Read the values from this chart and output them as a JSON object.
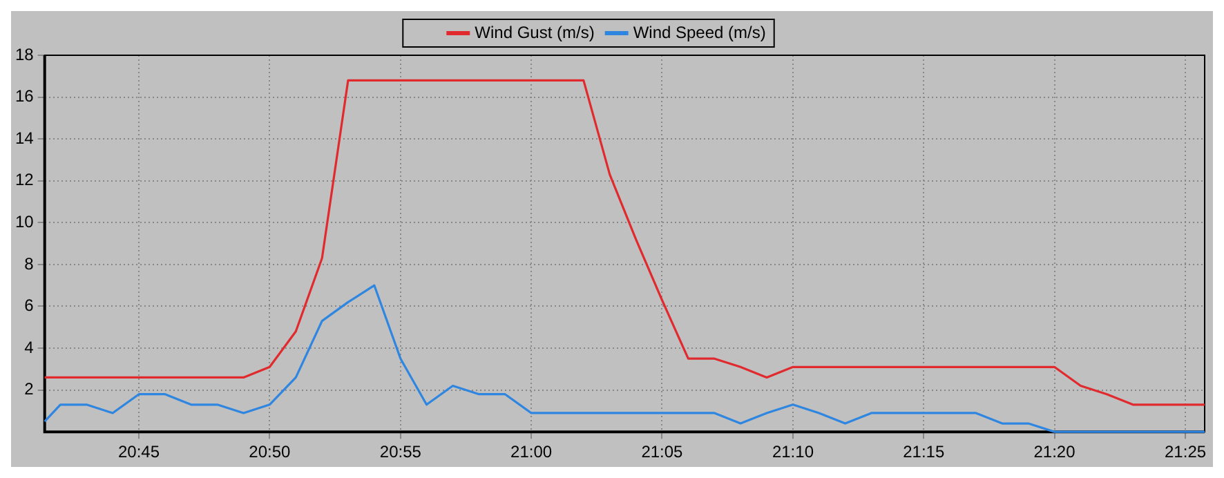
{
  "chart_data": {
    "type": "line",
    "legend": "top",
    "grid": true,
    "marker": "none",
    "line_style": "solid",
    "xlim": [
      20.69,
      21.429
    ],
    "ylim": [
      0,
      18
    ],
    "xticks": [
      {
        "value": 20.75,
        "label": "20:45"
      },
      {
        "value": 20.8333,
        "label": "20:50"
      },
      {
        "value": 20.9167,
        "label": "20:55"
      },
      {
        "value": 21,
        "label": "21:00"
      },
      {
        "value": 21.0833,
        "label": "21:05"
      },
      {
        "value": 21.1667,
        "label": "21:10"
      },
      {
        "value": 21.25,
        "label": "21:15"
      },
      {
        "value": 21.3333,
        "label": "21:20"
      },
      {
        "value": 21.4167,
        "label": "21:25"
      }
    ],
    "yticks": [
      2,
      4,
      6,
      8,
      10,
      12,
      14,
      16,
      18
    ],
    "x": [
      20.69,
      20.7,
      20.7167,
      20.7333,
      20.75,
      20.7667,
      20.7833,
      20.8,
      20.8167,
      20.8333,
      20.85,
      20.8667,
      20.8833,
      20.9,
      20.9167,
      20.9333,
      20.95,
      20.9667,
      20.9833,
      21,
      21.0167,
      21.0333,
      21.05,
      21.0667,
      21.0833,
      21.1,
      21.1167,
      21.1333,
      21.15,
      21.1667,
      21.1833,
      21.2,
      21.2167,
      21.2333,
      21.25,
      21.2667,
      21.2833,
      21.3,
      21.3167,
      21.3333,
      21.35,
      21.3667,
      21.3833,
      21.4,
      21.4167,
      21.429
    ],
    "series": [
      {
        "name": "Wind Gust (m/s)",
        "color": "#e02a2e",
        "values": [
          2.6,
          2.6,
          2.6,
          2.6,
          2.6,
          2.6,
          2.6,
          2.6,
          2.6,
          3.1,
          4.8,
          8.3,
          16.8,
          16.8,
          16.8,
          16.8,
          16.8,
          16.8,
          16.8,
          16.8,
          16.8,
          16.8,
          12.3,
          9.2,
          6.3,
          3.5,
          3.5,
          3.1,
          2.6,
          3.1,
          3.1,
          3.1,
          3.1,
          3.1,
          3.1,
          3.1,
          3.1,
          3.1,
          3.1,
          3.1,
          2.2,
          1.8,
          1.3,
          1.3,
          1.3,
          1.3
        ]
      },
      {
        "name": "Wind Speed (m/s)",
        "color": "#2f86e0",
        "values": [
          0.5,
          1.3,
          1.3,
          0.9,
          1.8,
          1.8,
          1.3,
          1.3,
          0.9,
          1.3,
          2.6,
          5.3,
          6.2,
          7.0,
          3.5,
          1.3,
          2.2,
          1.8,
          1.8,
          0.9,
          0.9,
          0.9,
          0.9,
          0.9,
          0.9,
          0.9,
          0.9,
          0.4,
          0.9,
          1.3,
          0.9,
          0.4,
          0.9,
          0.9,
          0.9,
          0.9,
          0.9,
          0.4,
          0.4,
          0,
          0,
          0,
          0,
          0,
          0,
          0
        ]
      }
    ]
  }
}
